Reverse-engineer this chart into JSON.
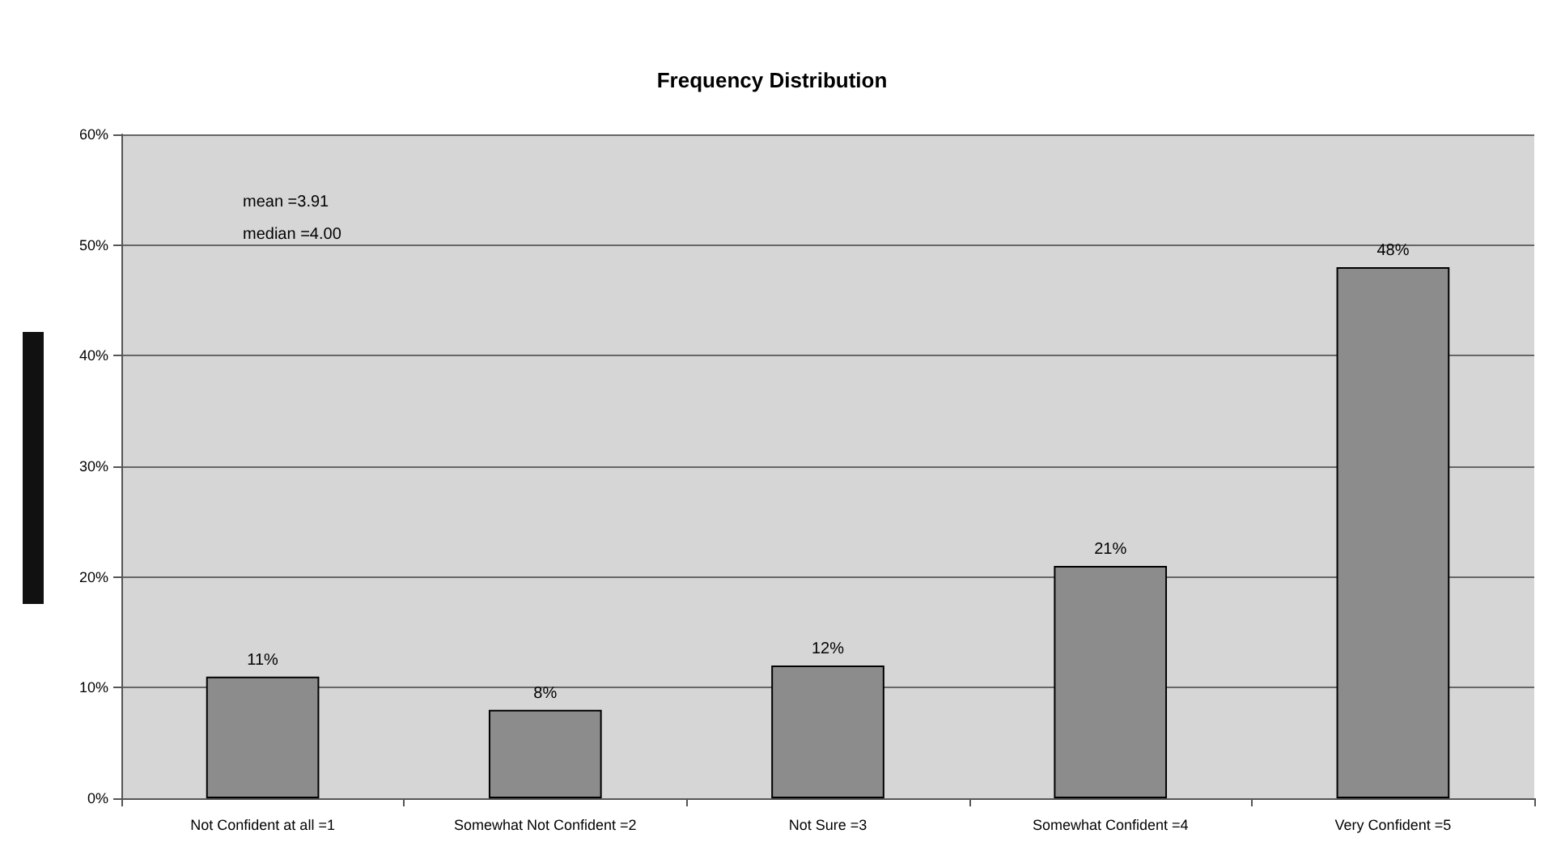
{
  "chart_data": {
    "type": "bar",
    "title": "Frequency Distribution",
    "categories": [
      "Not Confident at all =1",
      "Somewhat Not Confident =2",
      "Not Sure =3",
      "Somewhat Confident =4",
      "Very Confident =5"
    ],
    "values": [
      11,
      8,
      12,
      21,
      48
    ],
    "color": "#8c8c8c",
    "value_labels": [
      "11%",
      "8%",
      "12%",
      "21%",
      "48%"
    ],
    "ylim": [
      0,
      60
    ],
    "yticks": [
      {
        "value": 0,
        "label": "0%"
      },
      {
        "value": 10,
        "label": "10%"
      },
      {
        "value": 20,
        "label": "20%"
      },
      {
        "value": 30,
        "label": "30%"
      },
      {
        "value": 40,
        "label": "40%"
      },
      {
        "value": 50,
        "label": "50%"
      },
      {
        "value": 60,
        "label": "60%"
      }
    ],
    "annotations": [
      "mean =3.91",
      "median =4.00"
    ],
    "grid": "y"
  }
}
